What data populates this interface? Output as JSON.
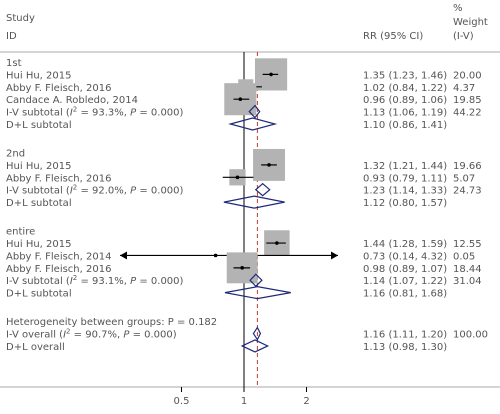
{
  "chart_data": {
    "type": "forest",
    "header": {
      "col1": [
        "Study",
        "ID"
      ],
      "col2": "RR (95% CI)",
      "col3": [
        "%",
        "Weight",
        "(I-V)"
      ]
    },
    "x_ticks": [
      "0.5",
      "1",
      "2"
    ],
    "x_tick_values": [
      0.5,
      1,
      2
    ],
    "null_line": 1,
    "overall_estimate": 1.16,
    "groups": [
      {
        "label": "1st",
        "rows": [
          {
            "kind": "study",
            "label": "Hui Hu, 2015",
            "rr": 1.35,
            "lo": 1.23,
            "hi": 1.46,
            "ci": "1.35 (1.23, 1.46)",
            "weight": "20.00",
            "w": 20.0
          },
          {
            "kind": "study",
            "label": "Abby F. Fleisch, 2016",
            "rr": 1.02,
            "lo": 0.84,
            "hi": 1.22,
            "ci": "1.02 (0.84, 1.22)",
            "weight": "4.37",
            "w": 4.37
          },
          {
            "kind": "study",
            "label": "Candace A. Robledo, 2014",
            "rr": 0.96,
            "lo": 0.89,
            "hi": 1.06,
            "ci": "0.96 (0.89, 1.06)",
            "weight": "19.85",
            "w": 19.85
          },
          {
            "kind": "iv",
            "label": "I-V subtotal (I² = 93.3%, P = 0.000)",
            "rr": 1.13,
            "lo": 1.06,
            "hi": 1.19,
            "ci": "1.13 (1.06, 1.19)",
            "weight": "44.22"
          },
          {
            "kind": "dl",
            "label": "D+L subtotal",
            "rr": 1.1,
            "lo": 0.86,
            "hi": 1.41,
            "ci": "1.10 (0.86, 1.41)",
            "weight": ""
          }
        ]
      },
      {
        "label": "2nd",
        "rows": [
          {
            "kind": "study",
            "label": "Hui Hu, 2015",
            "rr": 1.32,
            "lo": 1.21,
            "hi": 1.44,
            "ci": "1.32 (1.21, 1.44)",
            "weight": "19.66",
            "w": 19.66
          },
          {
            "kind": "study",
            "label": "Abby F. Fleisch, 2016",
            "rr": 0.93,
            "lo": 0.79,
            "hi": 1.11,
            "ci": "0.93 (0.79, 1.11)",
            "weight": "5.07",
            "w": 5.07
          },
          {
            "kind": "iv",
            "label": "I-V subtotal (I² = 92.0%, P = 0.000)",
            "rr": 1.23,
            "lo": 1.14,
            "hi": 1.33,
            "ci": "1.23 (1.14, 1.33)",
            "weight": "24.73"
          },
          {
            "kind": "dl",
            "label": "D+L subtotal",
            "rr": 1.12,
            "lo": 0.8,
            "hi": 1.57,
            "ci": "1.12 (0.80, 1.57)",
            "weight": ""
          }
        ]
      },
      {
        "label": "entire",
        "rows": [
          {
            "kind": "study",
            "label": "Hui Hu, 2015",
            "rr": 1.44,
            "lo": 1.28,
            "hi": 1.59,
            "ci": "1.44 (1.28, 1.59)",
            "weight": "12.55",
            "w": 12.55
          },
          {
            "kind": "study",
            "label": "Abby F. Fleisch, 2014",
            "rr": 0.73,
            "lo": 0.14,
            "hi": 4.32,
            "ci": "0.73 (0.14, 4.32)",
            "weight": "0.05",
            "w": 0.05
          },
          {
            "kind": "study",
            "label": "Abby F. Fleisch, 2016",
            "rr": 0.98,
            "lo": 0.89,
            "hi": 1.07,
            "ci": "0.98 (0.89, 1.07)",
            "weight": "18.44",
            "w": 18.44
          },
          {
            "kind": "iv",
            "label": "I-V subtotal (I² = 93.1%, P = 0.000)",
            "rr": 1.14,
            "lo": 1.07,
            "hi": 1.22,
            "ci": "1.14 (1.07, 1.22)",
            "weight": "31.04"
          },
          {
            "kind": "dl",
            "label": "D+L subtotal",
            "rr": 1.16,
            "lo": 0.81,
            "hi": 1.68,
            "ci": "1.16 (0.81, 1.68)",
            "weight": ""
          }
        ]
      }
    ],
    "overall": {
      "heterogeneity": "Heterogeneity between groups: P = 0.182",
      "rows": [
        {
          "kind": "iv",
          "label": "I-V overall (I² = 90.7%, P = 0.000)",
          "rr": 1.16,
          "lo": 1.11,
          "hi": 1.2,
          "ci": "1.16 (1.11, 1.20)",
          "weight": "100.00"
        },
        {
          "kind": "dl",
          "label": "D+L overall",
          "rr": 1.13,
          "lo": 0.98,
          "hi": 1.3,
          "ci": "1.13 (0.98, 1.30)",
          "weight": ""
        }
      ]
    },
    "colors": {
      "text": "#555555",
      "box": "#b3b3b3",
      "ci_line": "#000000",
      "diamond": "#1f2a7a",
      "overall_line": "#c0392b",
      "rule": "#aaaaaa"
    }
  }
}
